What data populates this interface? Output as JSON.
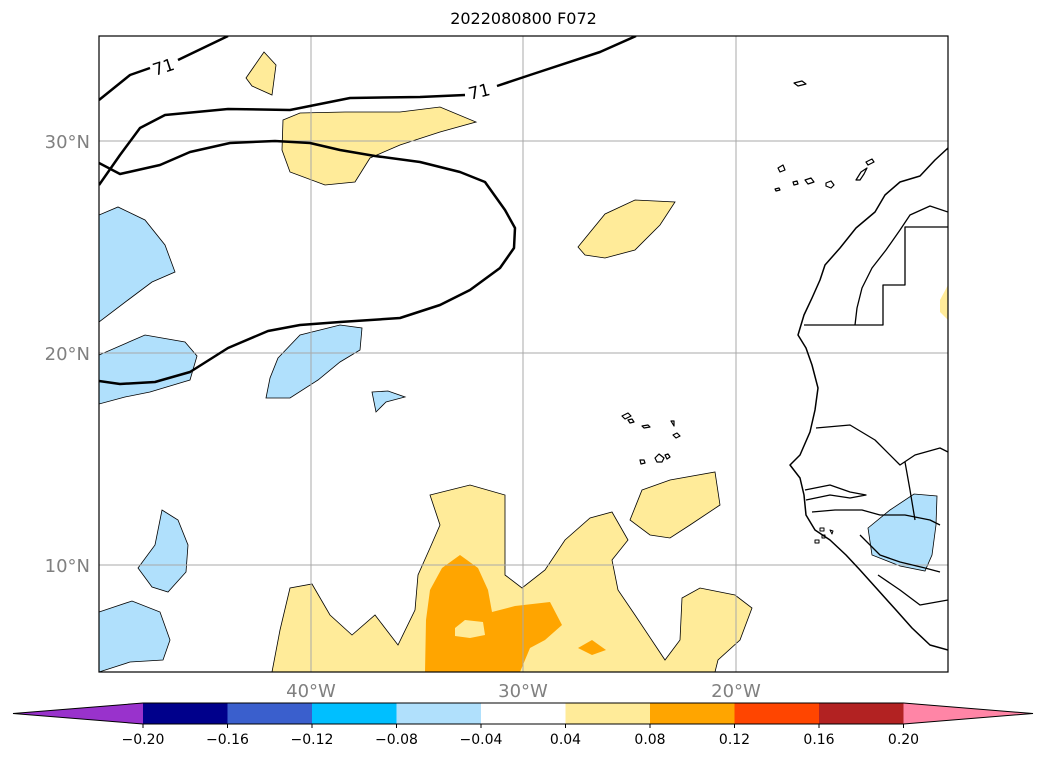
{
  "title": "2022080800 F072",
  "map": {
    "lat_labels": [
      {
        "label": "30°N",
        "lat": 30
      },
      {
        "label": "20°N",
        "lat": 20
      },
      {
        "label": "10°N",
        "lat": 10
      }
    ],
    "lon_labels": [
      {
        "label": "40°W",
        "lon": -40
      },
      {
        "label": "30°W",
        "lon": -30
      },
      {
        "label": "20°W",
        "lon": -20
      }
    ],
    "contour_labels": [
      "71",
      "71"
    ],
    "colors": {
      "light_blue": "#b0e0fc",
      "light_yellow": "#ffeb99",
      "orange": "#ffa500",
      "coast": "#000000",
      "grid": "#a9a9a9"
    }
  },
  "colorbar": {
    "ticks": [
      "−0.20",
      "−0.16",
      "−0.12",
      "−0.08",
      "−0.04",
      "0.04",
      "0.08",
      "0.12",
      "0.16",
      "0.20"
    ],
    "colors": [
      "#9932cc",
      "#00008b",
      "#3a5fcd",
      "#00bfff",
      "#b0e0fc",
      "#ffffff",
      "#ffeb99",
      "#ffa500",
      "#ff4500",
      "#b22222",
      "#ff85a6"
    ]
  }
}
